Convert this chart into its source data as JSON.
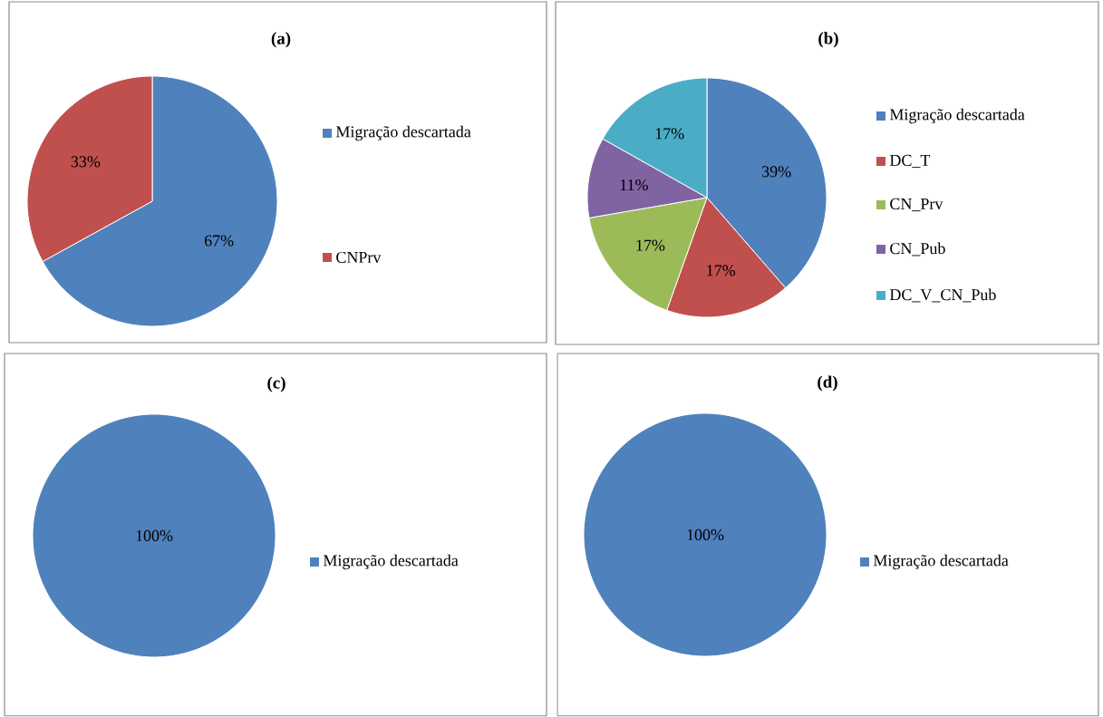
{
  "chart_data": [
    {
      "type": "pie",
      "title": "(a)",
      "categories": [
        "Migração descartada",
        "CNPrv"
      ],
      "values": [
        67,
        33
      ],
      "colors": [
        "#4f81bd",
        "#c0504d"
      ],
      "value_labels": [
        "67%",
        "33%"
      ],
      "legend": "right"
    },
    {
      "type": "pie",
      "title": "(b)",
      "categories": [
        "Migração descartada",
        "DC_T",
        "CN_Prv",
        "CN_Pub",
        "DC_V_CN_Pub"
      ],
      "values": [
        39,
        17,
        17,
        11,
        17
      ],
      "colors": [
        "#4f81bd",
        "#c0504d",
        "#9bbb59",
        "#8064a2",
        "#4bacc6"
      ],
      "value_labels": [
        "39%",
        "17%",
        "17%",
        "11%",
        "17%"
      ],
      "legend": "right"
    },
    {
      "type": "pie",
      "title": "(c)",
      "categories": [
        "Migração descartada"
      ],
      "values": [
        100
      ],
      "colors": [
        "#4f81bd"
      ],
      "value_labels": [
        "100%"
      ],
      "legend": "right"
    },
    {
      "type": "pie",
      "title": "(d)",
      "categories": [
        "Migração descartada"
      ],
      "values": [
        100
      ],
      "colors": [
        "#4f81bd"
      ],
      "value_labels": [
        "100%"
      ],
      "legend": "right"
    }
  ]
}
